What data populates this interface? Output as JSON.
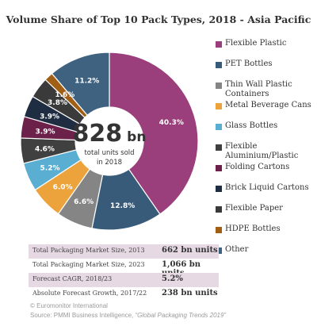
{
  "chart_data": {
    "type": "pie",
    "title": "Volume Share of Top 10 Pack Types, 2018 - Asia Pacific",
    "center_value": "828",
    "center_unit": "bn",
    "center_caption_line1": "total units sold",
    "center_caption_line2": "in 2018",
    "slices": [
      {
        "label": "Flexible Plastic",
        "value": 40.3,
        "display": "40.3%",
        "color": "#9a3f7b"
      },
      {
        "label": "PET Bottles",
        "value": 12.8,
        "display": "12.8%",
        "color": "#395b7a"
      },
      {
        "label": "Thin Wall Plastic Containers",
        "value": 6.6,
        "display": "6.6%",
        "color": "#858585"
      },
      {
        "label": "Metal Beverage Cans",
        "value": 6.0,
        "display": "6.0%",
        "color": "#eda33b"
      },
      {
        "label": "Glass Bottles",
        "value": 5.2,
        "display": "5.2%",
        "color": "#5aaed1"
      },
      {
        "label": "Flexible Aluminium/Plastic",
        "value": 4.6,
        "display": "4.6%",
        "color": "#404040"
      },
      {
        "label": "Folding Cartons",
        "value": 3.9,
        "display": "3.9%",
        "color": "#6b2149"
      },
      {
        "label": "Brick Liquid Cartons",
        "value": 3.9,
        "display": "3.9%",
        "color": "#1f2d42"
      },
      {
        "label": "Flexible Paper",
        "value": 3.8,
        "display": "3.8%",
        "color": "#3a3a3a"
      },
      {
        "label": "HDPE Bottles",
        "value": 1.6,
        "display": "1.6%",
        "color": "#a05f14"
      },
      {
        "label": "Other",
        "value": 11.2,
        "display": "11.2%",
        "color": "#3f6281"
      }
    ]
  },
  "legend": {
    "items": [
      {
        "lines": [
          "Flexible Plastic"
        ],
        "color": "#9a3f7b"
      },
      {
        "lines": [
          "PET Bottles"
        ],
        "color": "#395b7a"
      },
      {
        "lines": [
          "Thin Wall Plastic",
          "Containers"
        ],
        "color": "#858585"
      },
      {
        "lines": [
          "Metal Beverage Cans"
        ],
        "color": "#eda33b"
      },
      {
        "lines": [
          "Glass Bottles"
        ],
        "color": "#5aaed1"
      },
      {
        "lines": [
          "Flexible",
          "Aluminium/Plastic"
        ],
        "color": "#404040"
      },
      {
        "lines": [
          "Folding Cartons"
        ],
        "color": "#6b2149"
      },
      {
        "lines": [
          "Brick Liquid Cartons"
        ],
        "color": "#1f2d42"
      },
      {
        "lines": [
          "Flexible Paper"
        ],
        "color": "#3a3a3a"
      },
      {
        "lines": [
          "HDPE Bottles"
        ],
        "color": "#a05f14"
      },
      {
        "lines": [
          "Other"
        ],
        "color": "#3f6281"
      }
    ]
  },
  "stats": [
    {
      "label": "Total Packaging Market Size, 2013",
      "value": "662 bn units",
      "shaded": true
    },
    {
      "label": "Total Packaging Market Size, 2023",
      "value": "1,066 bn units",
      "shaded": false
    },
    {
      "label": "Forecast CAGR, 2018/23",
      "value": "5.2%",
      "shaded": true
    },
    {
      "label": "Absolute Forecast Growth, 2017/22",
      "value": "238 bn units",
      "shaded": false
    }
  ],
  "footer": {
    "copyright": "© Euromonitor International",
    "source_prefix": "Source: PMMI Business Intelligence, ",
    "source_title": "“Global Packaging Trends 2019”"
  }
}
